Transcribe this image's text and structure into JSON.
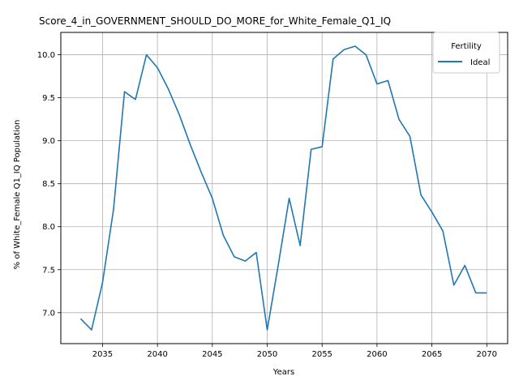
{
  "chart_data": {
    "type": "line",
    "title": "Score_4_in_GOVERNMENT_SHOULD_DO_MORE_for_White_Female_Q1_IQ",
    "xlabel": "Years",
    "ylabel": "% of White_Female Q1_IQ Population",
    "xlim": [
      2031.2,
      2071.9
    ],
    "ylim": [
      6.64,
      10.26
    ],
    "x_ticks": [
      2035,
      2040,
      2045,
      2050,
      2055,
      2060,
      2065,
      2070
    ],
    "y_ticks": [
      7.0,
      7.5,
      8.0,
      8.5,
      9.0,
      9.5,
      10.0
    ],
    "grid": true,
    "legend": {
      "title": "Fertility",
      "placement": "top-right"
    },
    "colors": {
      "series_0": "#1f77b4"
    },
    "x": [
      2033,
      2034,
      2035,
      2036,
      2037,
      2038,
      2039,
      2040,
      2041,
      2042,
      2043,
      2044,
      2045,
      2046,
      2047,
      2048,
      2049,
      2050,
      2051,
      2052,
      2053,
      2054,
      2055,
      2056,
      2057,
      2058,
      2059,
      2060,
      2061,
      2062,
      2063,
      2064,
      2065,
      2066,
      2067,
      2068,
      2069,
      2070
    ],
    "series": [
      {
        "name": "Ideal",
        "values": [
          6.93,
          6.8,
          7.35,
          8.2,
          9.57,
          9.48,
          10.0,
          9.85,
          9.6,
          9.3,
          8.95,
          8.63,
          8.33,
          7.9,
          7.65,
          7.6,
          7.7,
          6.8,
          7.55,
          8.33,
          7.78,
          8.9,
          8.93,
          9.95,
          10.06,
          10.1,
          10.0,
          9.66,
          9.7,
          9.25,
          9.05,
          8.37,
          8.17,
          7.95,
          7.32,
          7.55,
          7.23,
          7.23
        ]
      }
    ]
  }
}
